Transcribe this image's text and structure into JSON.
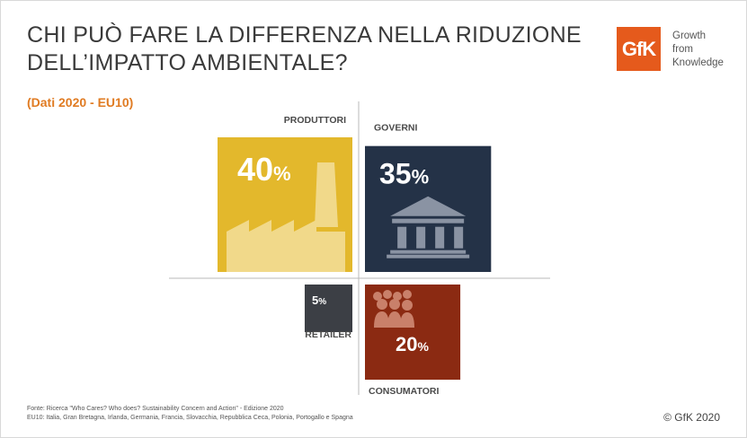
{
  "header": {
    "title_line1": "CHI PUÒ FARE LA DIFFERENZA NELLA RIDUZIONE",
    "title_line2": "DELL’IMPATTO AMBIENTALE?",
    "subtitle": "(Dati 2020 - EU10)"
  },
  "logo": {
    "mark": "GfK",
    "tagline": [
      "Growth",
      "from",
      "Knowledge"
    ]
  },
  "chart_data": {
    "type": "bar",
    "categories": [
      "PRODUTTORI",
      "GOVERNI",
      "RETAILER",
      "CONSUMATORI"
    ],
    "values": [
      40,
      35,
      5,
      20
    ],
    "unit": "%",
    "colors": [
      "#e3b82c",
      "#243247",
      "#3c3f45",
      "#8b2a12"
    ],
    "icons": [
      "factory-icon",
      "government-building-icon",
      "",
      "people-group-icon"
    ]
  },
  "footer": {
    "source": "Fonte: Ricerca \"Who Cares? Who does? Sustainability Concern and Action\" - Edizione 2020",
    "note": "EU10: Italia, Gran Bretagna, Irlanda, Germania, Francia, Slovacchia, Repubblica Ceca, Polonia, Portogallo e Spagna",
    "copyright": "© GfK 2020"
  }
}
